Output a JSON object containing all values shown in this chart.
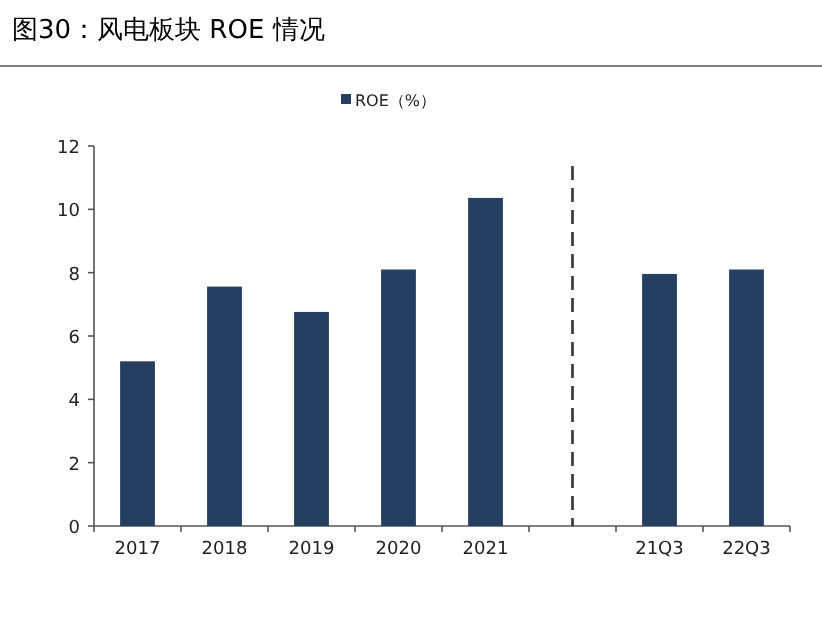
{
  "chart_data": {
    "type": "bar",
    "title": "图30：风电板块 ROE 情况",
    "categories": [
      "2017",
      "2018",
      "2019",
      "2020",
      "2021",
      null,
      "21Q3",
      "22Q3"
    ],
    "series": [
      {
        "name": "ROE（%）",
        "color": "#243f60",
        "values": [
          5.2,
          7.56,
          6.76,
          8.1,
          10.36,
          null,
          7.96,
          8.1
        ]
      }
    ],
    "ylim": [
      0,
      12
    ],
    "yticks": [
      0,
      2,
      4,
      6,
      8,
      10,
      12
    ],
    "legend": "top",
    "ref_lines": [
      {
        "axis": "x",
        "color": "#333333",
        "line_style": "dashed"
      }
    ]
  }
}
